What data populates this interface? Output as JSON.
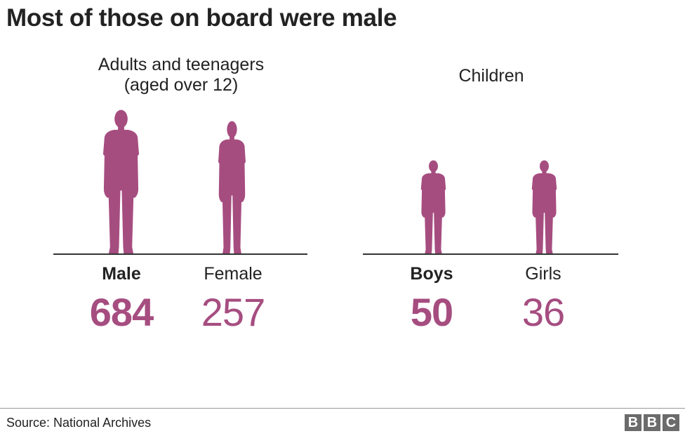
{
  "title": "Most of those on board were male",
  "groups": [
    {
      "heading_line1": "Adults and teenagers",
      "heading_line2": "(aged over 12)",
      "items": [
        {
          "label": "Male",
          "value": "684"
        },
        {
          "label": "Female",
          "value": "257"
        }
      ]
    },
    {
      "heading_line1": "Children",
      "items": [
        {
          "label": "Boys",
          "value": "50"
        },
        {
          "label": "Girls",
          "value": "36"
        }
      ]
    }
  ],
  "footer": {
    "source": "Source: National Archives",
    "logo": [
      "B",
      "B",
      "C"
    ]
  },
  "colors": {
    "accent": "#a64d80",
    "text": "#222222",
    "logo_bg": "#6b6b6b"
  }
}
